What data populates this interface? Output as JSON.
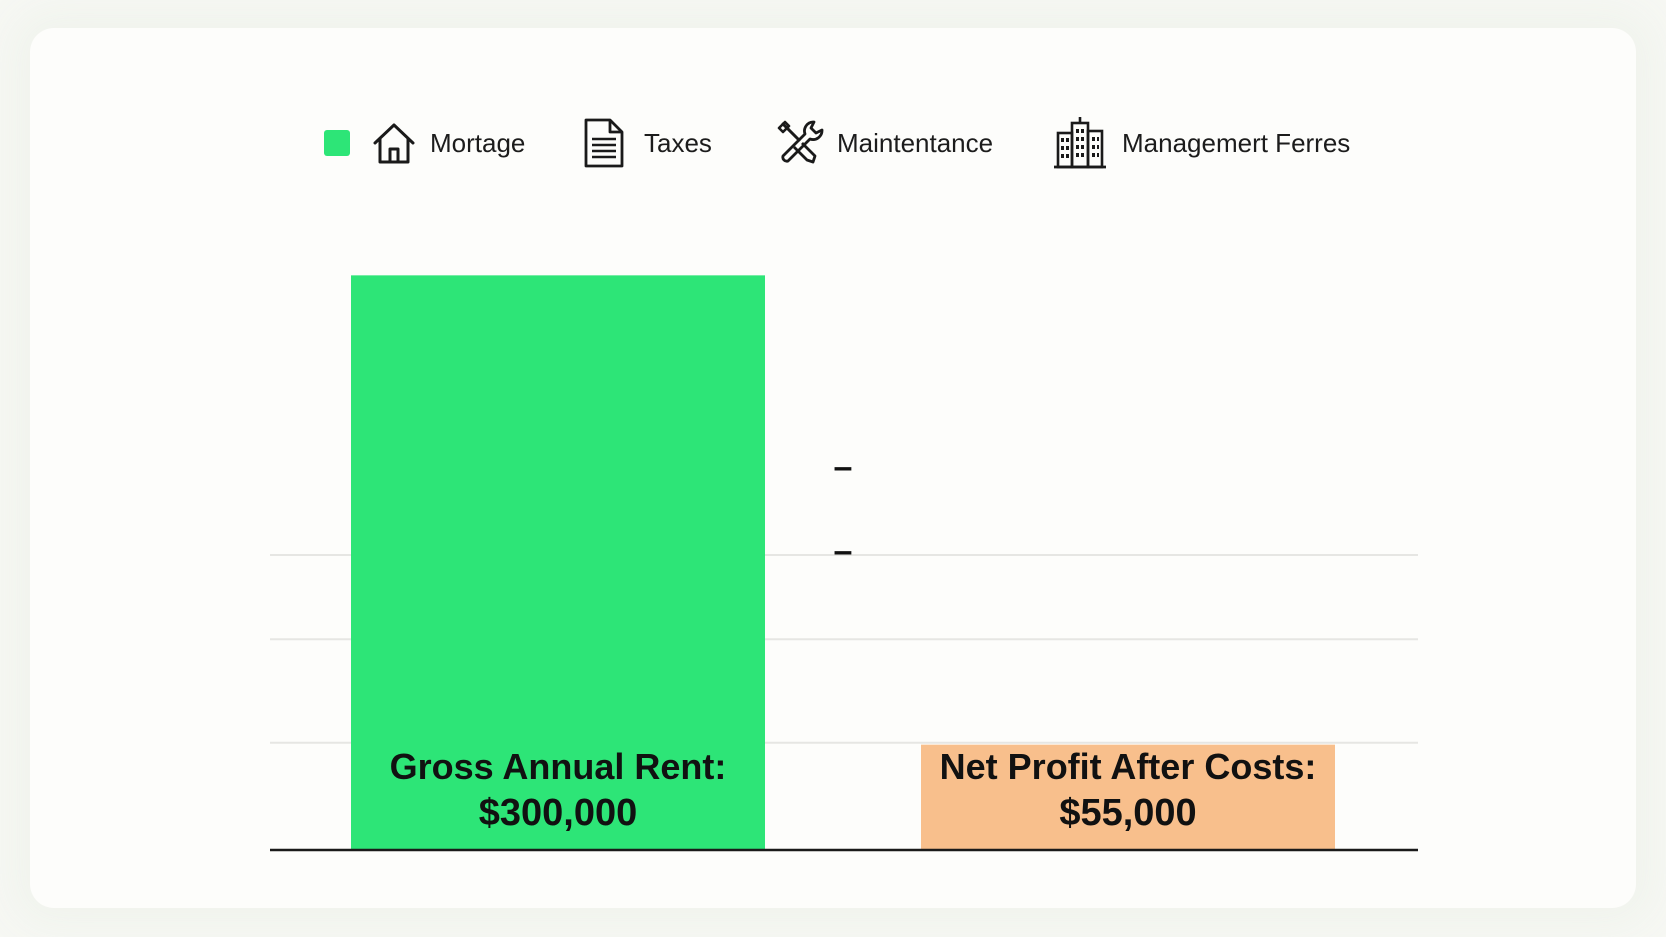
{
  "legend": [
    {
      "label": "Mortage",
      "icon": "house-icon",
      "swatch": "#2de577"
    },
    {
      "label": "Taxes",
      "icon": "document-icon",
      "swatch": ""
    },
    {
      "label": "Maintentance",
      "icon": "tools-icon",
      "swatch": ""
    },
    {
      "label": "Managemert Ferres",
      "icon": "building-icon",
      "swatch": ""
    }
  ],
  "operators": [
    "–",
    "–"
  ],
  "chart_data": {
    "type": "bar",
    "title": "",
    "xlabel": "",
    "ylabel": "",
    "ylim": [
      0,
      355000
    ],
    "grid": true,
    "gridlines": [
      56000,
      110000,
      154000
    ],
    "legend_position": "top",
    "categories": [
      "Gross Annual Rent:",
      "Net Profit After Costs:"
    ],
    "value_labels": [
      "$300,000",
      "$55,000"
    ],
    "values": [
      300000,
      55000
    ],
    "colors": [
      "#2de577",
      "#f8bf8c"
    ]
  }
}
